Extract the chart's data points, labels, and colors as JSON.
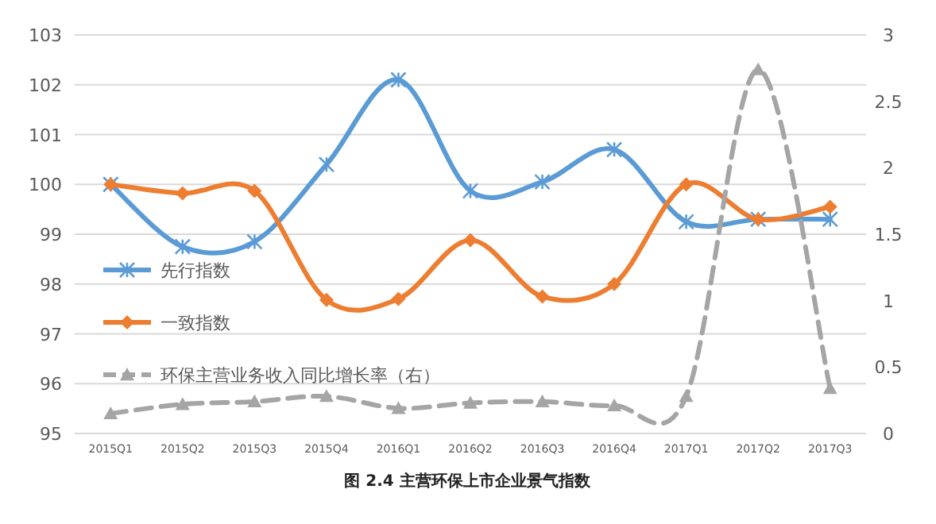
{
  "chart_data": {
    "type": "line",
    "title": "图 2.4 主营环保上市企业景气指数",
    "categories": [
      "2015Q1",
      "2015Q2",
      "2015Q3",
      "2015Q4",
      "2016Q1",
      "2016Q2",
      "2016Q3",
      "2016Q4",
      "2017Q1",
      "2017Q2",
      "2017Q3"
    ],
    "series": [
      {
        "name": "先行指数",
        "color": "#5b9bd5",
        "marker": "cross",
        "line_style": "solid",
        "values": [
          100,
          98.75,
          98.85,
          100.4,
          102.1,
          99.87,
          100.05,
          100.7,
          99.25,
          99.3,
          99.3
        ]
      },
      {
        "name": "一致指数",
        "color": "#ed7d31",
        "marker": "diamond",
        "line_style": "solid",
        "values": [
          100,
          99.82,
          99.87,
          97.68,
          97.7,
          98.88,
          97.75,
          98.0,
          100.0,
          99.3,
          99.55
        ]
      },
      {
        "name": "环保主营业务收入同比增长率（右）",
        "color": "#a5a5a5",
        "marker": "triangle",
        "line_style": "dashed",
        "axis": "y2",
        "values": [
          0.15,
          0.22,
          0.24,
          0.28,
          0.19,
          0.23,
          0.24,
          0.21,
          0.28,
          2.74,
          0.34
        ]
      }
    ],
    "ylim": [
      95,
      103
    ],
    "yticks": [
      95,
      96,
      97,
      98,
      99,
      100,
      101,
      102,
      103
    ],
    "y2lim": [
      0,
      3
    ],
    "y2ticks": [
      0,
      {
        "value": 0.5,
        "label": "0.5"
      },
      1,
      {
        "value": 1.5,
        "label": "1.5"
      },
      2,
      {
        "value": 2.5,
        "label": "2.5"
      },
      3
    ],
    "grid": "y",
    "legend": "left"
  }
}
